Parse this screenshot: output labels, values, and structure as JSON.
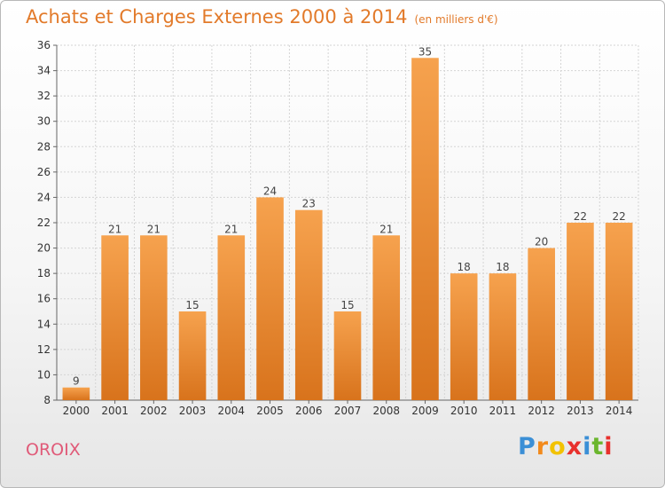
{
  "header": {
    "title": "Achats et Charges Externes 2000 à 2014",
    "unit": "(en milliers d'€)"
  },
  "footer": {
    "commune": "OROIX",
    "logo": {
      "letters": [
        "P",
        "r",
        "o",
        "x",
        "i",
        "t",
        "i"
      ],
      "colors": [
        "#3b8fd6",
        "#f28a1c",
        "#f2c200",
        "#e8302c",
        "#3b8fd6",
        "#6bb62e",
        "#e8302c"
      ]
    }
  },
  "chart_data": {
    "type": "bar",
    "categories": [
      "2000",
      "2001",
      "2002",
      "2003",
      "2004",
      "2005",
      "2006",
      "2007",
      "2008",
      "2009",
      "2010",
      "2011",
      "2012",
      "2013",
      "2014"
    ],
    "values": [
      9,
      21,
      21,
      15,
      21,
      24,
      23,
      15,
      21,
      35,
      18,
      18,
      20,
      22,
      22
    ],
    "ylim": [
      8,
      36
    ],
    "yticks": [
      8,
      10,
      12,
      14,
      16,
      18,
      20,
      22,
      24,
      26,
      28,
      30,
      32,
      34,
      36
    ],
    "grid": true,
    "bar_color_top": "#f6a24e",
    "bar_color_bottom": "#d8731c"
  }
}
